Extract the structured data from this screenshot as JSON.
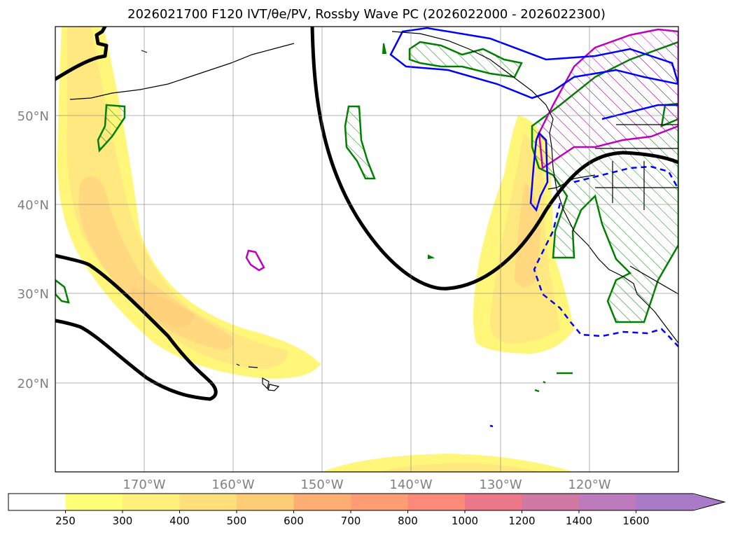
{
  "title": "2026021700 F120 IVT/θe/PV, Rossby Wave PC (2026022000 - 2026022300)",
  "map": {
    "lon_range": [
      -180,
      -110
    ],
    "lat_range": [
      10,
      60
    ],
    "lat_ticks": [
      {
        "label": "50°N",
        "lat": 50
      },
      {
        "label": "40°N",
        "lat": 40
      },
      {
        "label": "30°N",
        "lat": 30
      },
      {
        "label": "20°N",
        "lat": 20
      }
    ],
    "lon_ticks": [
      {
        "label": "170°W",
        "lon": -170
      },
      {
        "label": "160°W",
        "lon": -160
      },
      {
        "label": "150°W",
        "lon": -150
      },
      {
        "label": "140°W",
        "lon": -140
      },
      {
        "label": "130°W",
        "lon": -130
      },
      {
        "label": "120°W",
        "lon": -120
      }
    ],
    "grid": true,
    "colors": {
      "ivt_250": "#fff67a",
      "ivt_300": "#ffe880",
      "ivt_400": "#ffd87f",
      "pv_contour": "#000000",
      "theta_e": "#008000",
      "rossby_pos": "#0000ff",
      "rossby_neg": "#c000c0"
    }
  },
  "colorbar": {
    "labels": [
      "250",
      "300",
      "400",
      "500",
      "600",
      "700",
      "800",
      "1000",
      "1200",
      "1400",
      "1600"
    ],
    "colors": [
      "#ffffff",
      "#fefe78",
      "#fff07c",
      "#ffdf7a",
      "#fecb77",
      "#feae72",
      "#fe9d74",
      "#fb8a78",
      "#ea7688",
      "#d079a3",
      "#bd7bbd",
      "#a87ac8"
    ],
    "extend": "max"
  }
}
